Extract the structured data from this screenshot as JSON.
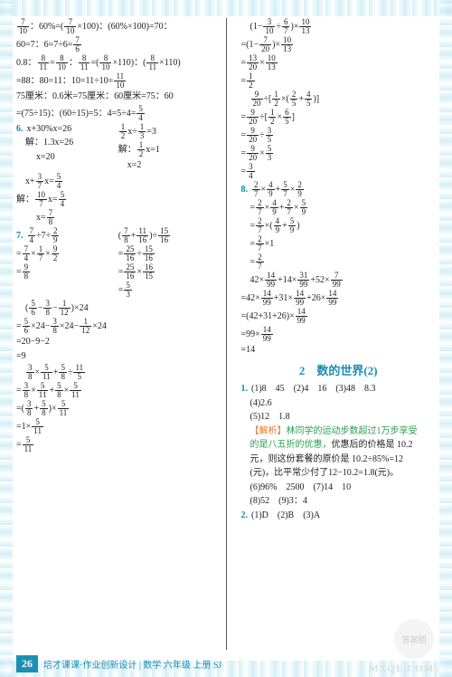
{
  "page_number": "26",
  "footer_text": "培才课课·作业创新设计 | 数学 六年级 上册 SJ",
  "watermark": "MXQE.COM",
  "badge": "答案圈",
  "col1": {
    "l1a": "7",
    "l1b": "10",
    "l1c": "：60%=",
    "l1d": "7",
    "l1e": "10",
    "l1f": "×100",
    "l1g": "：(60%×100)=70：",
    "l2": "60=7：6=7÷6=",
    "l2a": "7",
    "l2b": "6",
    "l3": "0.8：",
    "l3a": "8",
    "l3b": "11",
    "l3c": "=",
    "l3d": "8",
    "l3e": "10",
    "l3f": "：",
    "l3g": "8",
    "l3h": "11",
    "l3i": "=",
    "l3j": "8",
    "l3k": "10",
    "l3l": "×110",
    "l3m": "：",
    "l3n": "8",
    "l3o": "11",
    "l3p": "×110",
    "l4": "=88：80=11：10=11÷10=",
    "l4a": "11",
    "l4b": "10",
    "l5": "75厘米：0.6米=75厘米：60厘米=75：60",
    "l6": "=(75÷15)：(60÷15)=5：4=5÷4=",
    "l6a": "5",
    "l6b": "4",
    "p6": "6.",
    "p6l1a": "x+30%x=26",
    "p6l1b": "1",
    "p6l1c": "2",
    "p6l1d": "x÷",
    "p6l1e": "1",
    "p6l1f": "3",
    "p6l1g": "=3",
    "p6l2a": "解：1.3x=26",
    "p6l2b": "解：",
    "p6l2c": "1",
    "p6l2d": "2",
    "p6l2e": "x=1",
    "p6l3a": "x=20",
    "p6l3b": "x=2",
    "p6l4a": "x+",
    "p6l4b": "3",
    "p6l4c": "7",
    "p6l4d": "x=",
    "p6l4e": "5",
    "p6l4f": "4",
    "p6l5a": "解：",
    "p6l5b": "10",
    "p6l5c": "7",
    "p6l5d": "x=",
    "p6l5e": "5",
    "p6l5f": "4",
    "p6l6a": "x=",
    "p6l6b": "7",
    "p6l6c": "8",
    "p7": "7.",
    "p7a1": "7",
    "p7a2": "4",
    "p7a3": "÷7÷",
    "p7a4": "2",
    "p7a5": "9",
    "p7b1": "7",
    "p7b2": "8",
    "p7b3": "+",
    "p7b4": "11",
    "p7b5": "16",
    "p7b6": "÷",
    "p7b7": "15",
    "p7b8": "16",
    "p7c1": "=",
    "p7c2": "7",
    "p7c3": "4",
    "p7c4": "×",
    "p7c5": "1",
    "p7c6": "7",
    "p7c7": "×",
    "p7c8": "9",
    "p7c9": "2",
    "p7d1": "=",
    "p7d2": "25",
    "p7d3": "16",
    "p7d4": "÷",
    "p7d5": "15",
    "p7d6": "16",
    "p7e1": "=",
    "p7e2": "9",
    "p7e3": "8",
    "p7f1": "=",
    "p7f2": "25",
    "p7f3": "16",
    "p7f4": "×",
    "p7f5": "16",
    "p7f6": "15",
    "p7g1": "=",
    "p7g2": "5",
    "p7g3": "3",
    "p7h1": "5",
    "p7h2": "6",
    "p7h3": "−",
    "p7h4": "3",
    "p7h5": "8",
    "p7h6": "−",
    "p7h7": "1",
    "p7h8": "12",
    "p7h9": "×24",
    "p7i": "=",
    "p7i1": "5",
    "p7i2": "6",
    "p7i3": "×24−",
    "p7i4": "3",
    "p7i5": "8",
    "p7i6": "×24−",
    "p7i7": "1",
    "p7i8": "12",
    "p7i9": "×24",
    "p7j": "=20−9−2",
    "p7k": "=9",
    "p7l1": "3",
    "p7l2": "8",
    "p7l3": "×",
    "p7l4": "5",
    "p7l5": "11",
    "p7l6": "+",
    "p7l7": "5",
    "p7l8": "8",
    "p7l9": "÷",
    "p7l10": "11",
    "p7l11": "5",
    "p7m": "=",
    "p7m1": "3",
    "p7m2": "8",
    "p7m3": "×",
    "p7m4": "5",
    "p7m5": "11",
    "p7m6": "+",
    "p7m7": "5",
    "p7m8": "8",
    "p7m9": "×",
    "p7m10": "5",
    "p7m11": "11",
    "p7n": "=",
    "p7n1": "3",
    "p7n2": "8",
    "p7n3": "+",
    "p7n4": "5",
    "p7n5": "8",
    "p7n6": "×",
    "p7n7": "5",
    "p7n8": "11",
    "p7o": "=1×",
    "p7o1": "5",
    "p7o2": "11",
    "p7p": "=",
    "p7p1": "5",
    "p7p2": "11"
  },
  "col2": {
    "q1a": "1−",
    "q1b": "3",
    "q1c": "10",
    "q1d": "÷",
    "q1e": "6",
    "q1f": "7",
    "q1g": "×",
    "q1h": "10",
    "q1i": "13",
    "q2a": "=",
    "q2b": "1−",
    "q2c": "7",
    "q2d": "20",
    "q2e": "×",
    "q2f": "10",
    "q2g": "13",
    "q3a": "=",
    "q3b": "13",
    "q3c": "20",
    "q3d": "×",
    "q3e": "10",
    "q3f": "13",
    "q4a": "=",
    "q4b": "1",
    "q4c": "2",
    "q5a": "9",
    "q5b": "20",
    "q5c": "÷",
    "q5d": "1",
    "q5e": "2",
    "q5f": "×",
    "q5g": "2",
    "q5h": "5",
    "q5i": "+",
    "q5j": "4",
    "q5k": "5",
    "q6a": "=",
    "q6b": "9",
    "q6c": "20",
    "q6d": "÷",
    "q6e": "1",
    "q6f": "2",
    "q6g": "×",
    "q6h": "6",
    "q6i": "5",
    "q7a": "=",
    "q7b": "9",
    "q7c": "20",
    "q7d": "÷",
    "q7e": "3",
    "q7f": "5",
    "q8a": "=",
    "q8b": "9",
    "q8c": "20",
    "q8d": "×",
    "q8e": "5",
    "q8f": "3",
    "q9a": "=",
    "q9b": "3",
    "q9c": "4",
    "p8": "8.",
    "r1a": "2",
    "r1b": "7",
    "r1c": "×",
    "r1d": "4",
    "r1e": "9",
    "r1f": "+",
    "r1g": "5",
    "r1h": "7",
    "r1i": "×",
    "r1j": "2",
    "r1k": "9",
    "r2a": "=",
    "r2b": "2",
    "r2c": "7",
    "r2d": "×",
    "r2e": "4",
    "r2f": "9",
    "r2g": "+",
    "r2h": "2",
    "r2i": "7",
    "r2j": "×",
    "r2k": "5",
    "r2l": "9",
    "r3a": "=",
    "r3b": "2",
    "r3c": "7",
    "r3d": "×",
    "r3e": "4",
    "r3f": "9",
    "r3g": "+",
    "r3h": "5",
    "r3i": "9",
    "r4a": "=",
    "r4b": "2",
    "r4c": "7",
    "r4d": "×1",
    "r5a": "=",
    "r5b": "2",
    "r5c": "7",
    "s1a": "42×",
    "s1b": "14",
    "s1c": "99",
    "s1d": "+14×",
    "s1e": "31",
    "s1f": "99",
    "s1g": "+52×",
    "s1h": "7",
    "s1i": "99",
    "s2a": "=42×",
    "s2b": "14",
    "s2c": "99",
    "s2d": "+31×",
    "s2e": "14",
    "s2f": "99",
    "s2g": "+26×",
    "s2h": "14",
    "s2i": "99",
    "s3a": "=(42+31+26)×",
    "s3b": "14",
    "s3c": "99",
    "s4a": "=99×",
    "s4b": "14",
    "s4c": "99",
    "s5": "=14",
    "heading": "2　数的世界(2)",
    "a1": "1.",
    "a1t": "(1)8　45　(2)4　16　(3)48　8.3",
    "a2": "(4)2.6",
    "a3": "(5)12　1.8",
    "exp_lbl": "【解析】",
    "exp1": "林同学的运动步数超过1万步享受",
    "exp2": "的是八五折的优惠，",
    "exp2b": "优惠后的价格是 10.2",
    "exp3": "元，则这份套餐的原价是 10.2÷85%=12",
    "exp4": "(元)，比平常少付了12−10.2=1.8(元)。",
    "a4": "(6)96%　2500　(7)14　10",
    "a5": "(8)52　(9)3：4",
    "a6": "2.",
    "a6t": "(1)D　(2)B　(3)A"
  }
}
